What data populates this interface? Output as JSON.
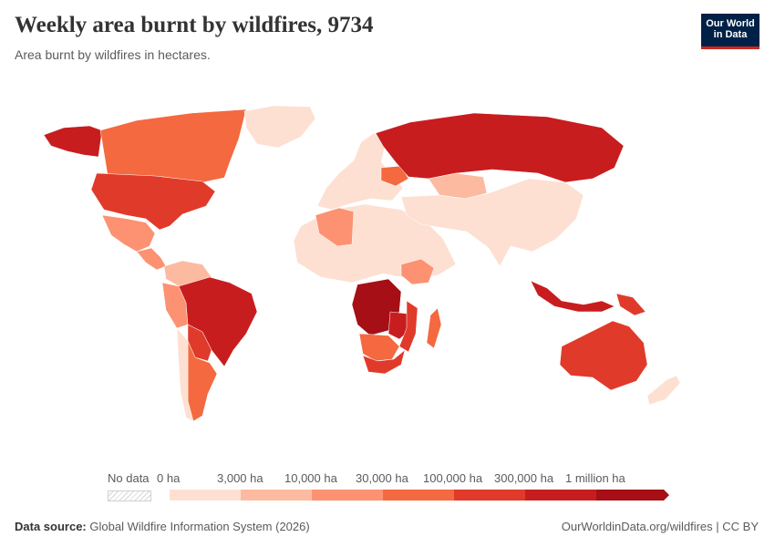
{
  "header": {
    "title": "Weekly area burnt by wildfires, 9734",
    "subtitle": "Area burnt by wildfires in hectares."
  },
  "logo": {
    "line1": "Our World",
    "line2": "in Data",
    "bg_color": "#002147",
    "accent_color": "#ce261e"
  },
  "legend": {
    "no_data_label": "No data",
    "bins": [
      {
        "label": "0 ha",
        "color": "#fde0d2"
      },
      {
        "label": "3,000 ha",
        "color": "#fcbba1"
      },
      {
        "label": "10,000 ha",
        "color": "#fc9272"
      },
      {
        "label": "30,000 ha",
        "color": "#f4693f"
      },
      {
        "label": "100,000 ha",
        "color": "#e03a2b"
      },
      {
        "label": "300,000 ha",
        "color": "#c81d1f"
      },
      {
        "label": "1 million ha",
        "color": "#a50f15"
      }
    ]
  },
  "chart_data": {
    "type": "choropleth",
    "unit": "ha",
    "regions": [
      {
        "name": "Alaska",
        "bin": 5
      },
      {
        "name": "Canada",
        "bin": 3
      },
      {
        "name": "Greenland",
        "bin": 0
      },
      {
        "name": "United States",
        "bin": 4
      },
      {
        "name": "Mexico",
        "bin": 2
      },
      {
        "name": "Central America",
        "bin": 2
      },
      {
        "name": "Colombia / Venezuela",
        "bin": 1
      },
      {
        "name": "Peru",
        "bin": 2
      },
      {
        "name": "Brazil",
        "bin": 5
      },
      {
        "name": "Bolivia / Paraguay",
        "bin": 4
      },
      {
        "name": "Argentina",
        "bin": 3
      },
      {
        "name": "Chile",
        "bin": 0
      },
      {
        "name": "Northern Africa",
        "bin": 0
      },
      {
        "name": "Algeria",
        "bin": 2
      },
      {
        "name": "Ethiopia",
        "bin": 2
      },
      {
        "name": "Angola / DR Congo",
        "bin": 6
      },
      {
        "name": "Zambia",
        "bin": 5
      },
      {
        "name": "Mozambique",
        "bin": 4
      },
      {
        "name": "Namibia / Botswana",
        "bin": 3
      },
      {
        "name": "South Africa",
        "bin": 4
      },
      {
        "name": "Madagascar",
        "bin": 3
      },
      {
        "name": "Europe",
        "bin": 0
      },
      {
        "name": "Ukraine",
        "bin": 3
      },
      {
        "name": "Russia",
        "bin": 5
      },
      {
        "name": "Kazakhstan",
        "bin": 1
      },
      {
        "name": "China / South Asia",
        "bin": 0
      },
      {
        "name": "Indonesia",
        "bin": 5
      },
      {
        "name": "Papua New Guinea",
        "bin": 4
      },
      {
        "name": "Australia",
        "bin": 4
      },
      {
        "name": "New Zealand",
        "bin": 0
      }
    ]
  },
  "footer": {
    "source_label": "Data source:",
    "source_text": "Global Wildfire Information System (2026)",
    "url_text": "OurWorldinData.org/wildfires | CC BY"
  }
}
